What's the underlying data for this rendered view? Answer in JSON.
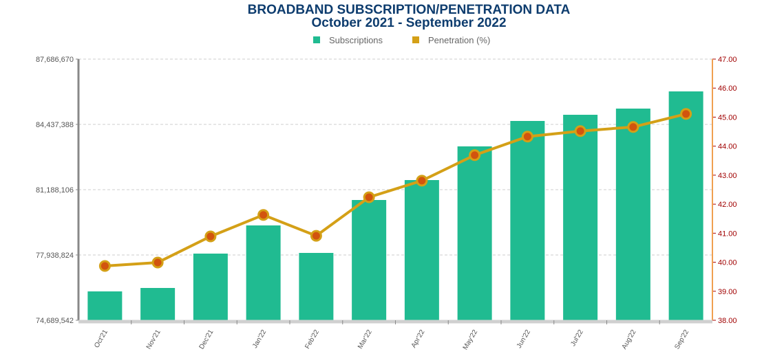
{
  "chart_data": {
    "type": "bar+line",
    "title": "BROADBAND SUBSCRIPTION/PENETRATION DATA",
    "subtitle": "October 2021 - September 2022",
    "legend_position": "top-center",
    "categories": [
      "Oct'21",
      "Nov'21",
      "Dec'21",
      "Jan'22",
      "Feb'22",
      "Mar'22",
      "Apr'22",
      "May'22",
      "Jun'22",
      "Jul'22",
      "Aug'22",
      "Sep'22"
    ],
    "series": [
      {
        "name": "Subscriptions",
        "type": "bar",
        "axis": "left",
        "color": "#20bb91",
        "values": [
          76126068,
          76297083,
          78007233,
          79409556,
          78041436,
          80675067,
          81666954,
          83342901,
          84608412,
          84916239,
          85224066,
          86079141
        ]
      },
      {
        "name": "Penetration (%)",
        "type": "line",
        "axis": "right",
        "color": "#d4a017",
        "marker_color": "#d2540e",
        "values": [
          39.87,
          39.99,
          40.89,
          41.63,
          40.91,
          42.24,
          42.81,
          43.69,
          44.33,
          44.52,
          44.66,
          45.11
        ]
      }
    ],
    "y_left": {
      "ylim": [
        74689542,
        87686670
      ],
      "ticks": [
        "74,689,542",
        "77,938,824",
        "81,188,106",
        "84,437,388",
        "87,686,670"
      ]
    },
    "y_right": {
      "ylim": [
        38,
        47
      ],
      "ticks": [
        "38.00",
        "39.00",
        "40.00",
        "41.00",
        "42.00",
        "43.00",
        "44.00",
        "45.00",
        "46.00",
        "47.00"
      ]
    },
    "grid": true
  }
}
